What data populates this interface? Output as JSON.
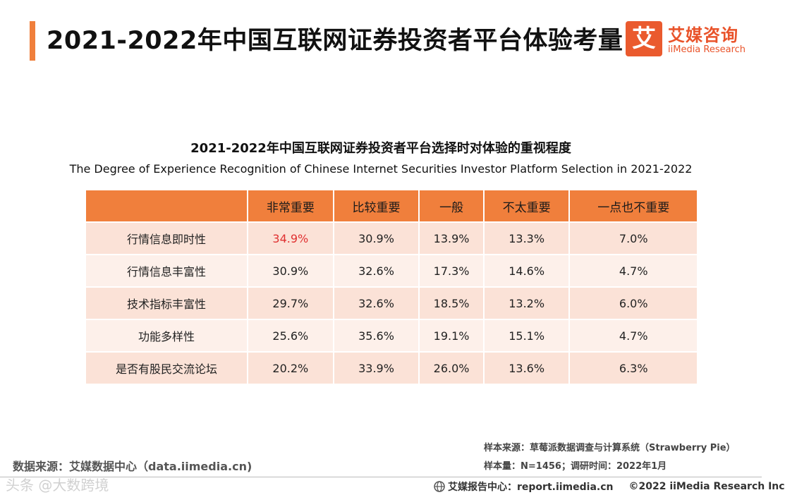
{
  "header": {
    "title": "2021-2022年中国互联网证券投资者平台体验考量",
    "accent_color": "#f07f3c"
  },
  "logo": {
    "glyph": "艾",
    "name_cn": "艾媒咨询",
    "name_en": "iiMedia Research",
    "color": "#e9532a"
  },
  "chart": {
    "title_cn": "2021-2022年中国互联网证券投资者平台选择时对体验的重视程度",
    "title_en": "The Degree of Experience Recognition of Chinese Internet Securities Investor Platform Selection in 2021-2022"
  },
  "table": {
    "corner": "",
    "columns": [
      "非常重要",
      "比较重要",
      "一般",
      "不太重要",
      "一点也不重要"
    ],
    "rows": [
      {
        "label": "行情信息即时性",
        "values": [
          "34.9%",
          "30.9%",
          "13.9%",
          "13.3%",
          "7.0%"
        ]
      },
      {
        "label": "行情信息丰富性",
        "values": [
          "30.9%",
          "32.6%",
          "17.3%",
          "14.6%",
          "4.7%"
        ]
      },
      {
        "label": "技术指标丰富性",
        "values": [
          "29.7%",
          "32.6%",
          "18.5%",
          "13.2%",
          "6.0%"
        ]
      },
      {
        "label": "功能多样性",
        "values": [
          "25.6%",
          "35.6%",
          "19.1%",
          "15.1%",
          "4.7%"
        ]
      },
      {
        "label": "是否有股民交流论坛",
        "values": [
          "20.2%",
          "33.9%",
          "26.0%",
          "13.6%",
          "6.3%"
        ]
      }
    ],
    "highlight_color": "#e03030"
  },
  "sources": {
    "data_source": "数据来源：艾媒数据中心（data.iimedia.cn)",
    "sample_source": "样本来源：草莓派数据调查与计算系统（Strawberry Pie）",
    "sample_size": "样本量：N=1456；调研时间：2022年1月"
  },
  "footer": {
    "report_center": "艾媒报告中心：report.iimedia.cn",
    "copyright": "©2022  iiMedia Research  Inc"
  },
  "watermark": "头条 @大数跨境"
}
